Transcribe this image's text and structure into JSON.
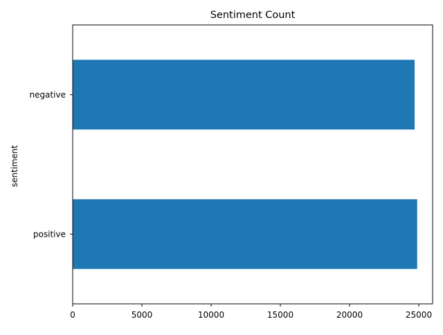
{
  "chart_data": {
    "type": "bar",
    "orientation": "horizontal",
    "title": "Sentiment Count",
    "xlabel": "",
    "ylabel": "sentiment",
    "categories": [
      "positive",
      "negative"
    ],
    "values": [
      24884,
      24698
    ],
    "xlim": [
      0,
      26000
    ],
    "xticks": [
      0,
      5000,
      10000,
      15000,
      20000,
      25000
    ],
    "grid": false,
    "legend": "none",
    "colors": {
      "bar": "#1f77b4",
      "axis": "#000000",
      "background": "#ffffff"
    }
  }
}
